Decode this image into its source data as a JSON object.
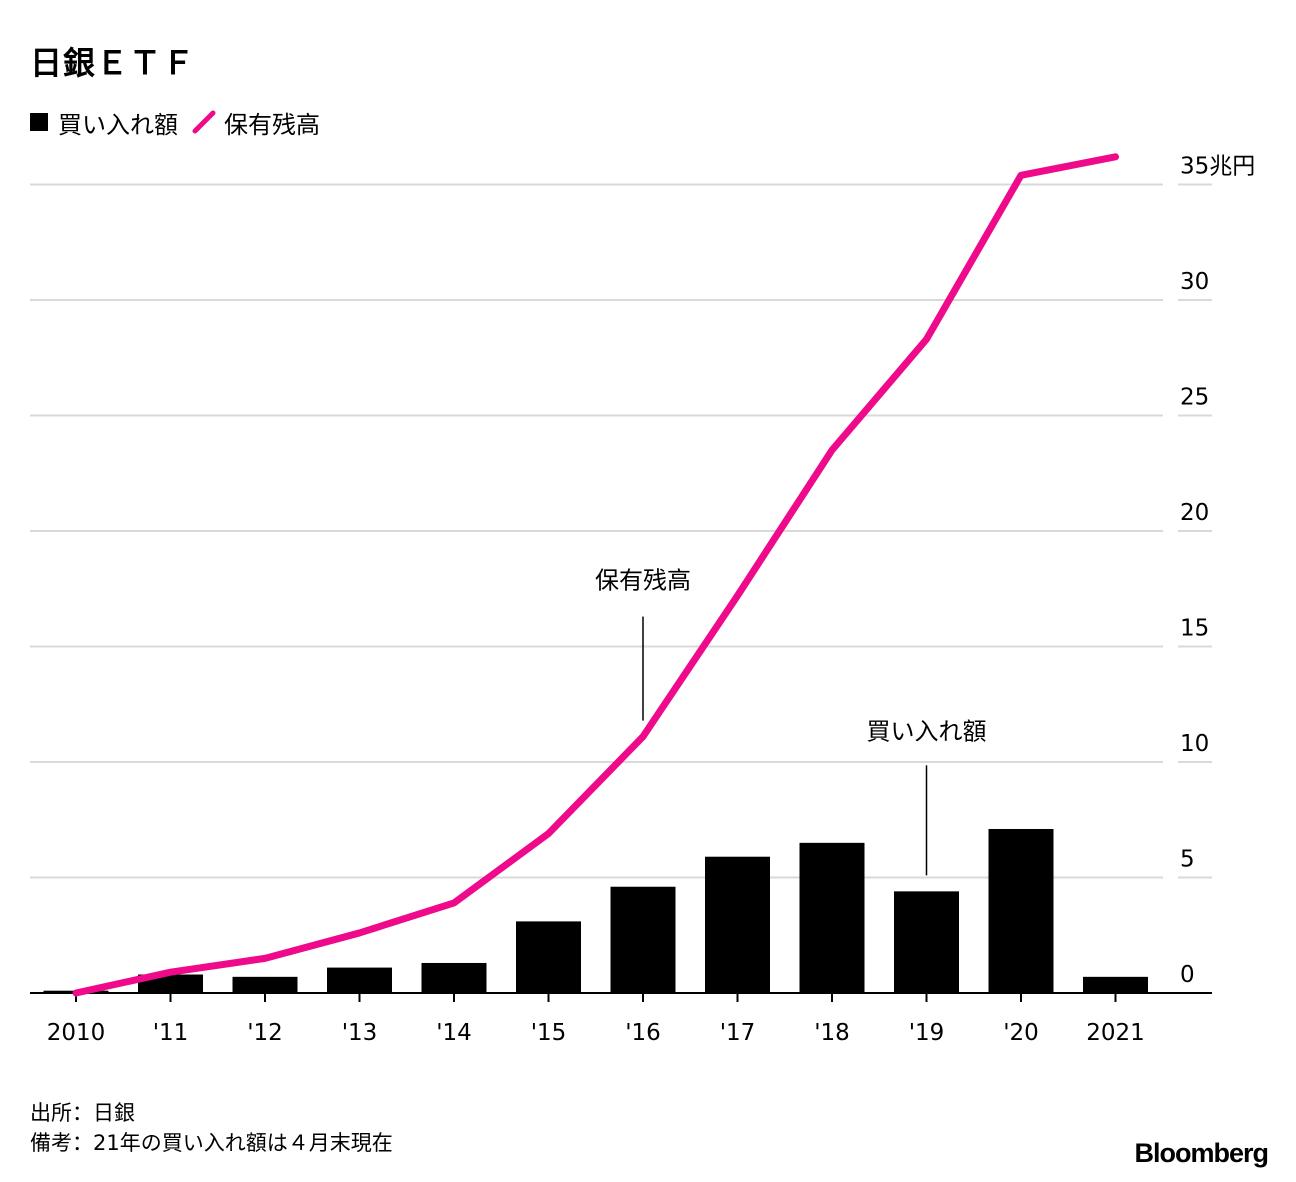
{
  "title": "日銀ＥＴＦ",
  "legend": {
    "bars_label": "買い入れ額",
    "line_label": "保有残高"
  },
  "colors": {
    "bar": "#000000",
    "line": "#ee0a8a",
    "grid": "#d9d9d9"
  },
  "chart_data": {
    "type": "bar",
    "categories": [
      "2010",
      "'11",
      "'12",
      "'13",
      "'14",
      "'15",
      "'16",
      "'17",
      "'18",
      "'19",
      "'20",
      "2021"
    ],
    "series": [
      {
        "name": "買い入れ額",
        "type": "bar",
        "values": [
          0.1,
          0.8,
          0.7,
          1.1,
          1.3,
          3.1,
          4.6,
          5.9,
          6.5,
          4.4,
          7.1,
          0.7
        ]
      },
      {
        "name": "保有残高",
        "type": "line",
        "values": [
          0.0,
          0.9,
          1.5,
          2.6,
          3.9,
          6.9,
          11.1,
          17.2,
          23.5,
          28.3,
          35.4,
          36.2
        ]
      }
    ],
    "y_ticks": [
      "0",
      "5",
      "10",
      "15",
      "20",
      "25",
      "30",
      "35兆円"
    ],
    "ylim": [
      0,
      36
    ],
    "annotations": [
      {
        "text": "保有残高",
        "category": "'16",
        "series": "保有残高"
      },
      {
        "text": "買い入れ額",
        "category": "'19",
        "series": "買い入れ額"
      }
    ],
    "grid": true,
    "legend_position": "top-left"
  },
  "footnotes": [
    "出所：日銀",
    "備考：21年の買い入れ額は４月末現在"
  ],
  "brand": "Bloomberg"
}
